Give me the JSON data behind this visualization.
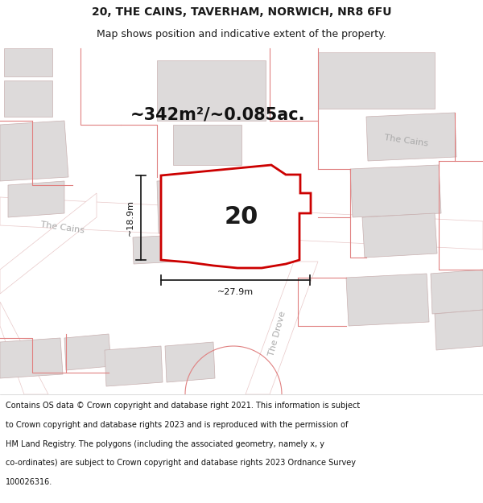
{
  "title_line1": "20, THE CAINS, TAVERHAM, NORWICH, NR8 6FU",
  "title_line2": "Map shows position and indicative extent of the property.",
  "area_label": "~342m²/~0.085ac.",
  "property_number": "20",
  "dim_height": "~18.9m",
  "dim_width": "~27.9m",
  "footer_lines": [
    "Contains OS data © Crown copyright and database right 2021. This information is subject",
    "to Crown copyright and database rights 2023 and is reproduced with the permission of",
    "HM Land Registry. The polygons (including the associated geometry, namely x, y",
    "co-ordinates) are subject to Crown copyright and database rights 2023 Ordnance Survey",
    "100026316."
  ],
  "map_bg": "#f2f0f0",
  "road_color": "#ffffff",
  "road_edge_color": "#e8c8c8",
  "building_fill": "#dddada",
  "building_stroke": "#c8b0b0",
  "property_stroke": "#cc0000",
  "property_fill": "#ffffff",
  "street_label_color": "#aaaaaa",
  "dim_line_color": "#111111",
  "text_color": "#1a1a1a",
  "footer_color": "#111111",
  "title_fontsize": 10,
  "subtitle_fontsize": 9,
  "area_fontsize": 15,
  "number_fontsize": 22,
  "street_fontsize": 8,
  "dim_fontsize": 8,
  "footer_fontsize": 7
}
